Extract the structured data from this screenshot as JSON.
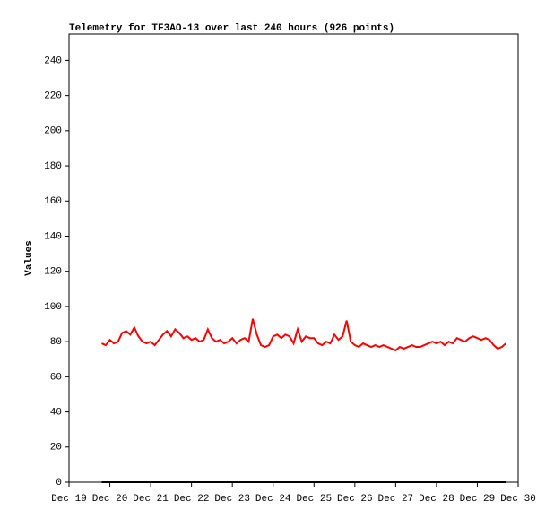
{
  "chart_data": {
    "type": "line",
    "title": "Telemetry for TF3AO-13 over last 240 hours (926 points)",
    "y_label": "Values",
    "xlim": [
      19,
      30
    ],
    "xticks": [
      {
        "value": 19,
        "label": "Dec 19"
      },
      {
        "value": 20,
        "label": "Dec 20"
      },
      {
        "value": 21,
        "label": "Dec 21"
      },
      {
        "value": 22,
        "label": "Dec 22"
      },
      {
        "value": 23,
        "label": "Dec 23"
      },
      {
        "value": 24,
        "label": "Dec 24"
      },
      {
        "value": 25,
        "label": "Dec 25"
      },
      {
        "value": 26,
        "label": "Dec 26"
      },
      {
        "value": 27,
        "label": "Dec 27"
      },
      {
        "value": 28,
        "label": "Dec 28"
      },
      {
        "value": 29,
        "label": "Dec 29"
      },
      {
        "value": 30,
        "label": "Dec 30"
      }
    ],
    "ylim": [
      0,
      255
    ],
    "yticks": [
      0,
      20,
      40,
      60,
      80,
      100,
      120,
      140,
      160,
      180,
      200,
      220,
      240
    ],
    "series": [
      {
        "color": "#ff0000",
        "x": [
          19.8,
          19.9,
          20.0,
          20.1,
          20.2,
          20.3,
          20.4,
          20.5,
          20.6,
          20.7,
          20.8,
          20.9,
          21.0,
          21.1,
          21.2,
          21.3,
          21.4,
          21.5,
          21.6,
          21.7,
          21.8,
          21.9,
          22.0,
          22.1,
          22.2,
          22.3,
          22.4,
          22.5,
          22.6,
          22.7,
          22.8,
          22.9,
          23.0,
          23.1,
          23.2,
          23.3,
          23.4,
          23.5,
          23.6,
          23.7,
          23.8,
          23.9,
          24.0,
          24.1,
          24.2,
          24.3,
          24.4,
          24.5,
          24.6,
          24.7,
          24.8,
          24.9,
          25.0,
          25.1,
          25.2,
          25.3,
          25.4,
          25.5,
          25.6,
          25.7,
          25.8,
          25.9,
          26.0,
          26.1,
          26.2,
          26.3,
          26.4,
          26.5,
          26.6,
          26.7,
          26.8,
          26.9,
          27.0,
          27.1,
          27.2,
          27.3,
          27.4,
          27.5,
          27.6,
          27.7,
          27.8,
          27.9,
          28.0,
          28.1,
          28.2,
          28.3,
          28.4,
          28.5,
          28.6,
          28.7,
          28.8,
          28.9,
          29.0,
          29.1,
          29.2,
          29.3,
          29.4,
          29.5,
          29.6,
          29.7
        ],
        "values": [
          79,
          78,
          81,
          79,
          80,
          85,
          86,
          84,
          88,
          83,
          80,
          79,
          80,
          78,
          81,
          84,
          86,
          83,
          87,
          85,
          82,
          83,
          81,
          82,
          80,
          81,
          87,
          82,
          80,
          81,
          79,
          80,
          82,
          79,
          81,
          82,
          80,
          93,
          84,
          78,
          77,
          78,
          83,
          84,
          82,
          84,
          83,
          79,
          87,
          80,
          83,
          82,
          82,
          79,
          78,
          80,
          79,
          84,
          81,
          83,
          92,
          80,
          78,
          77,
          79,
          78,
          77,
          78,
          77,
          78,
          77,
          76,
          75,
          77,
          76,
          77,
          78,
          77,
          77,
          78,
          79,
          80,
          79,
          80,
          78,
          80,
          79,
          82,
          81,
          80,
          82,
          83,
          82,
          81,
          82,
          81,
          78,
          76,
          77,
          79
        ]
      },
      {
        "color": "#000000",
        "x": [
          19.8,
          29.7
        ],
        "values": [
          0,
          0
        ]
      }
    ]
  }
}
